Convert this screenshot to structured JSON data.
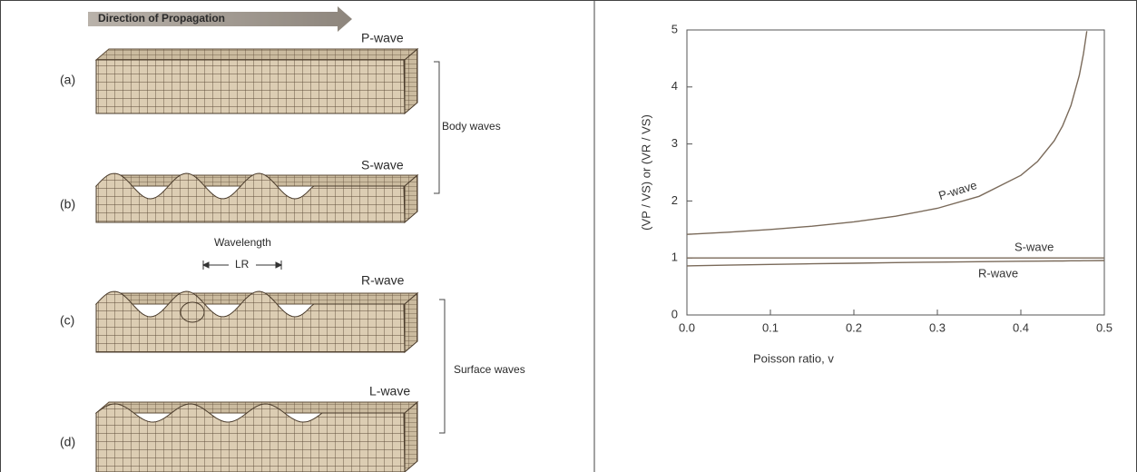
{
  "diagram": {
    "arrow_label": "Direction of Propagation",
    "panels": [
      {
        "tag": "(a)",
        "wave": "P-wave"
      },
      {
        "tag": "(b)",
        "wave": "S-wave"
      },
      {
        "tag": "(c)",
        "wave": "R-wave"
      },
      {
        "tag": "(d)",
        "wave": "L-wave"
      }
    ],
    "wavelength_label": "Wavelength",
    "wavelength_symbol": "LR",
    "groups": [
      "Body waves",
      "Surface waves"
    ]
  },
  "chart_data": {
    "type": "line",
    "x_label": "Poisson ratio, v",
    "y_label": "(VP / VS) or (VR / VS)",
    "x": [
      0,
      0.05,
      0.1,
      0.15,
      0.2,
      0.25,
      0.3,
      0.35,
      0.4,
      0.42,
      0.44,
      0.45,
      0.46,
      0.47,
      0.475,
      0.479,
      0.5
    ],
    "series": [
      {
        "name": "P-wave",
        "color": "#7a6a5a",
        "values": [
          1.414,
          1.453,
          1.5,
          1.558,
          1.633,
          1.732,
          1.871,
          2.082,
          2.449,
          2.693,
          3.055,
          3.317,
          3.674,
          4.203,
          4.583,
          4.98,
          null
        ]
      },
      {
        "name": "S-wave",
        "color": "#7a6a5a",
        "values": [
          1,
          1,
          1,
          1,
          1,
          1,
          1,
          1,
          1,
          1,
          1,
          1,
          1,
          1,
          1,
          1,
          1
        ]
      },
      {
        "name": "R-wave",
        "color": "#7a6a5a",
        "values": [
          0.862,
          0.875,
          0.887,
          0.898,
          0.908,
          0.918,
          0.926,
          0.934,
          0.942,
          0.944,
          0.947,
          0.948,
          0.95,
          0.951,
          0.952,
          0.953,
          0.955
        ]
      }
    ],
    "xlim": [
      0,
      0.5
    ],
    "ylim": [
      0,
      5
    ],
    "xticks": [
      {
        "value": 0,
        "label": "0.0"
      },
      0.1,
      0.2,
      0.3,
      0.4,
      0.5
    ],
    "yticks": [
      0,
      1,
      2,
      3,
      4,
      5
    ]
  }
}
